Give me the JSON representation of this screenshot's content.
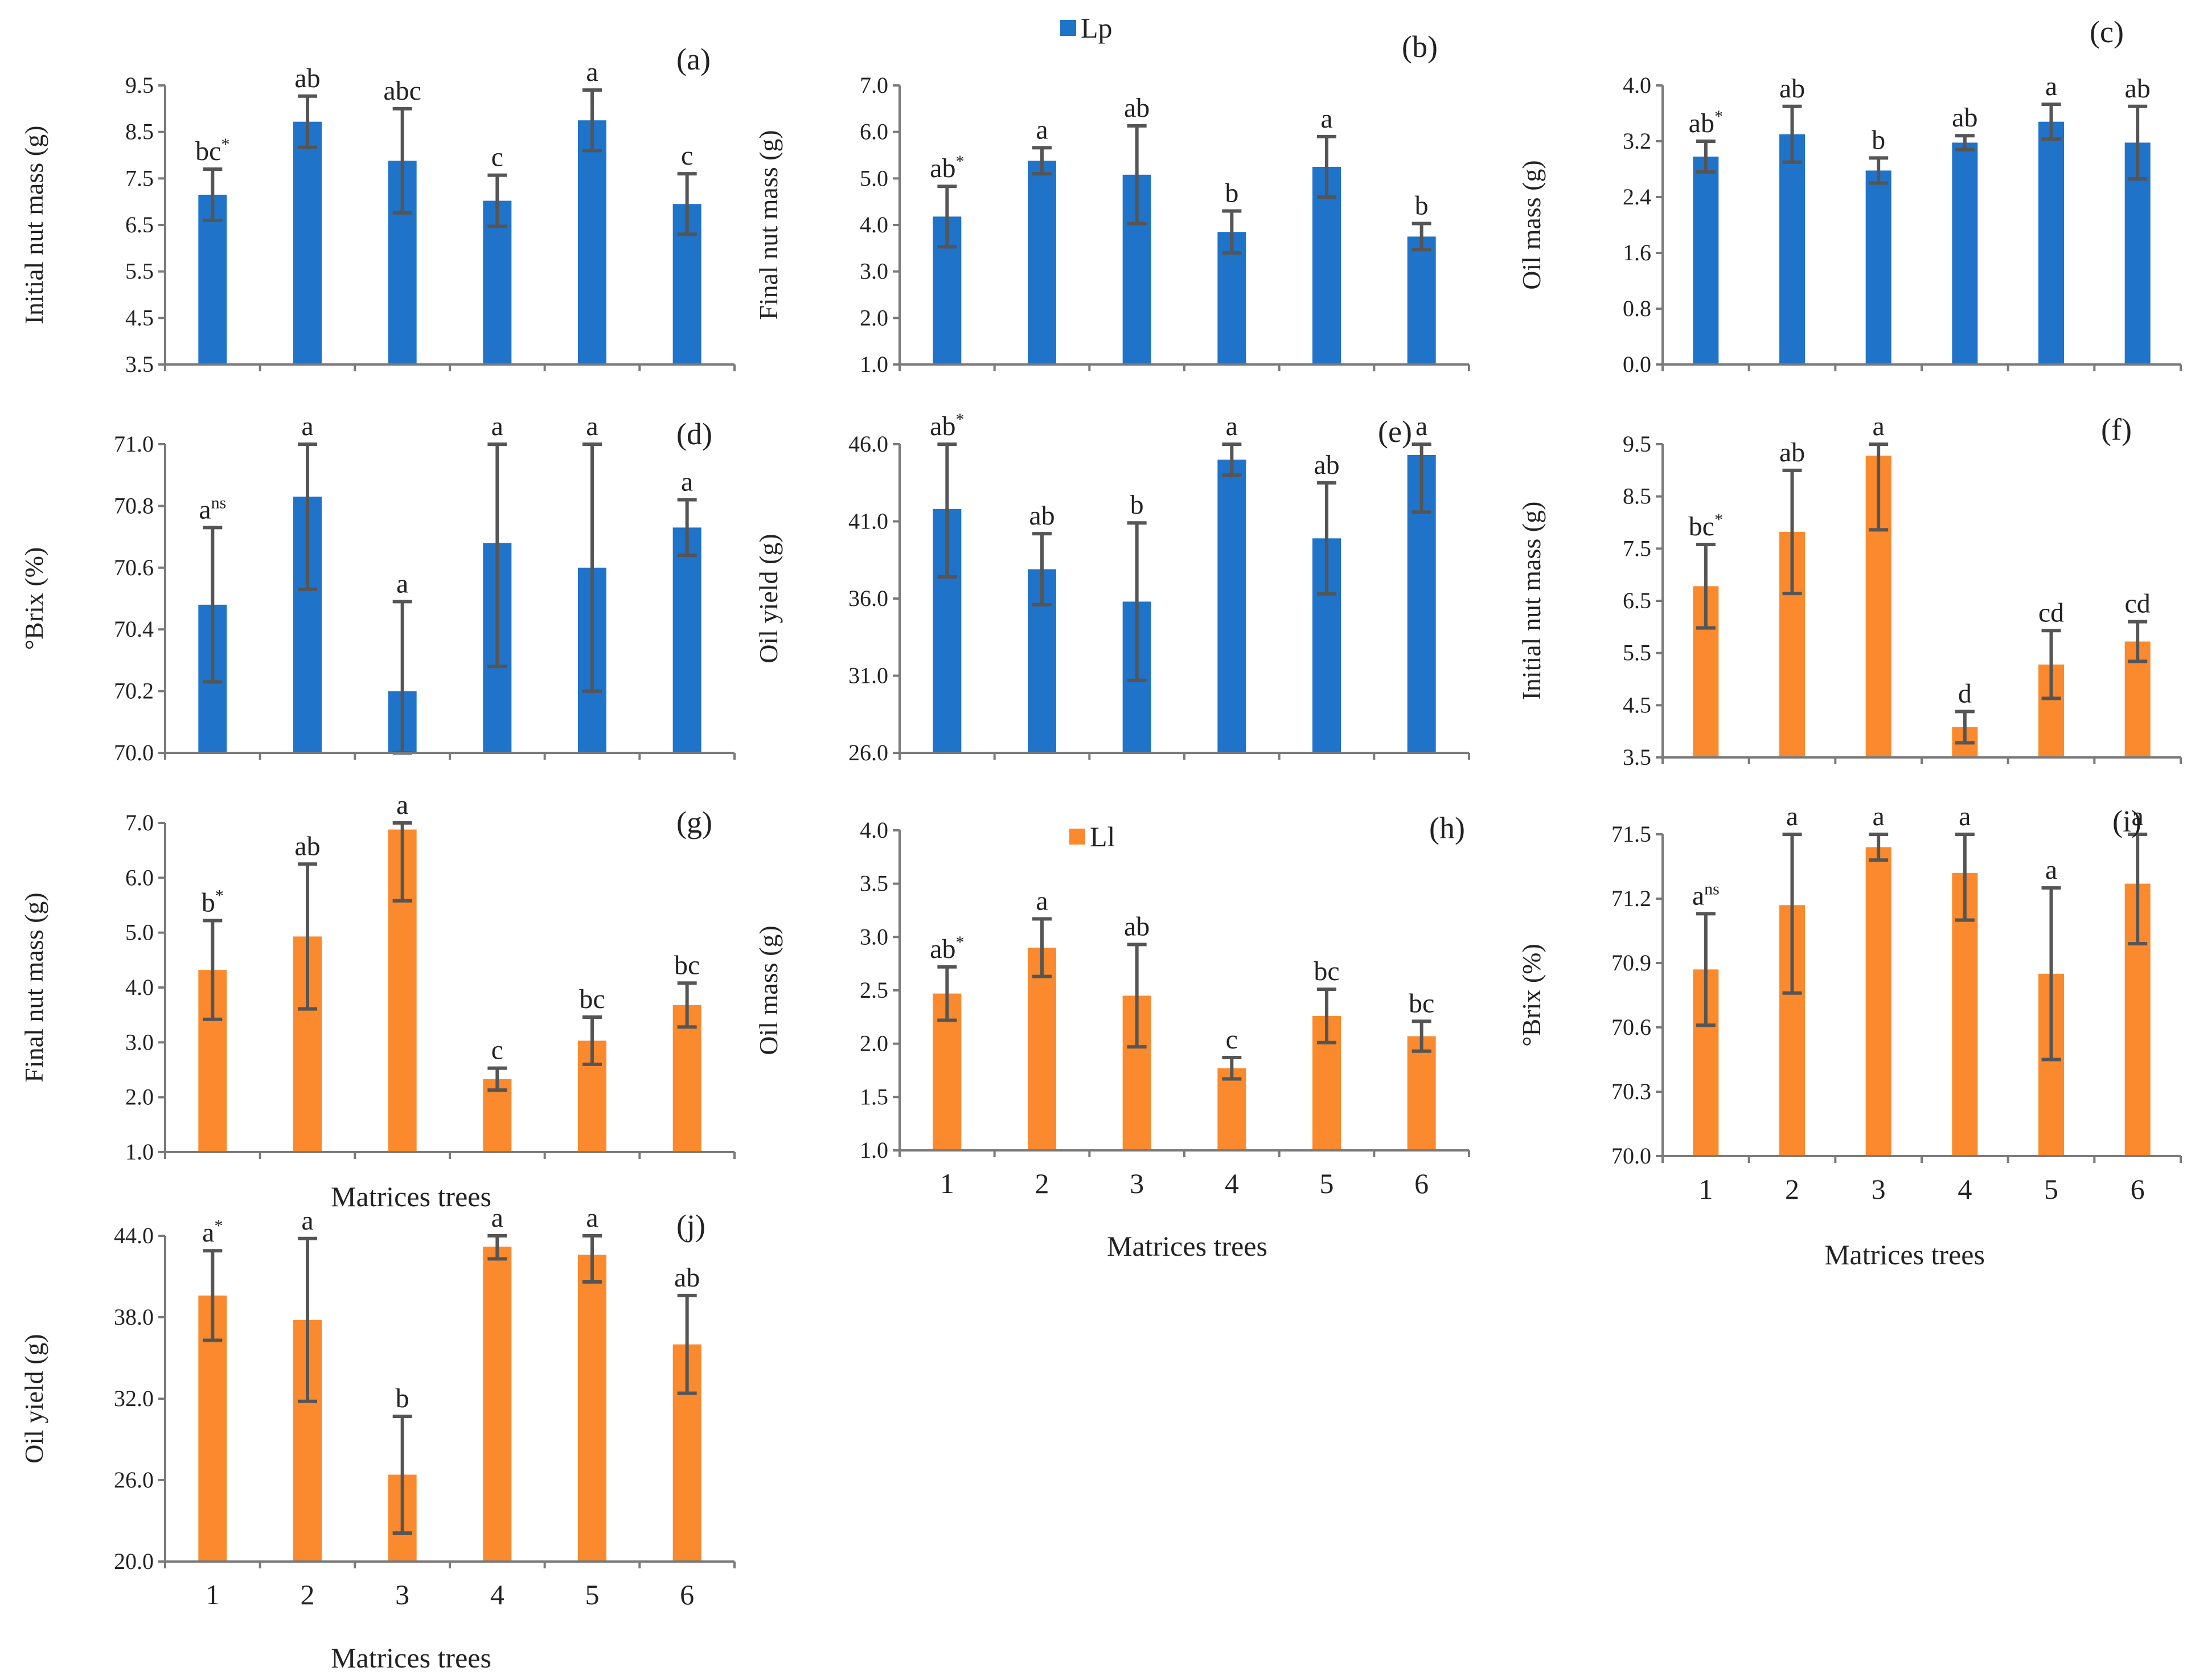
{
  "figure": {
    "legend": [
      {
        "label": "Lp",
        "color": "#1F73C9"
      },
      {
        "label": "Ll",
        "color": "#FA8A2D"
      }
    ],
    "colors": {
      "axis": "#7a7a7a",
      "error": "#555555"
    }
  },
  "chart_data": [
    {
      "panel": "(a)",
      "type": "bar",
      "series": "Lp",
      "ylabel": "Initial nut mass (g)",
      "xlabel": "",
      "categories": [
        "1",
        "2",
        "3",
        "4",
        "5",
        "6"
      ],
      "values": [
        7.15,
        8.72,
        7.88,
        7.02,
        8.75,
        6.95
      ],
      "errors": [
        0.55,
        0.55,
        1.12,
        0.55,
        0.65,
        0.65
      ],
      "letters": [
        "bc",
        "ab",
        "abc",
        "c",
        "a",
        "c"
      ],
      "marks": [
        "*",
        "",
        "",
        "",
        "",
        ""
      ],
      "ylim": [
        3.5,
        9.5
      ],
      "yticks": [
        "3.5",
        "4.5",
        "5.5",
        "6.5",
        "7.5",
        "8.5",
        "9.5"
      ],
      "showXTicks": false
    },
    {
      "panel": "(b)",
      "type": "bar",
      "series": "Lp",
      "ylabel": "Final nut mass (g)",
      "xlabel": "",
      "categories": [
        "1",
        "2",
        "3",
        "4",
        "5",
        "6"
      ],
      "values": [
        4.18,
        5.38,
        5.08,
        3.85,
        5.25,
        3.75
      ],
      "errors": [
        0.65,
        0.28,
        1.05,
        0.45,
        0.65,
        0.28
      ],
      "letters": [
        "ab",
        "a",
        "ab",
        "b",
        "a",
        "b"
      ],
      "marks": [
        "*",
        "",
        "",
        "",
        "",
        ""
      ],
      "ylim": [
        1.0,
        7.0
      ],
      "yticks": [
        "1.0",
        "2.0",
        "3.0",
        "4.0",
        "5.0",
        "6.0",
        "7.0"
      ],
      "showXTicks": false
    },
    {
      "panel": "(c)",
      "type": "bar",
      "series": "Lp",
      "ylabel": "Oil mass (g)",
      "xlabel": "",
      "categories": [
        "1",
        "2",
        "3",
        "4",
        "5",
        "6"
      ],
      "values": [
        2.98,
        3.3,
        2.78,
        3.18,
        3.48,
        3.18
      ],
      "errors": [
        0.22,
        0.4,
        0.18,
        0.1,
        0.25,
        0.52
      ],
      "letters": [
        "ab",
        "ab",
        "b",
        "ab",
        "a",
        "ab"
      ],
      "marks": [
        "*",
        "",
        "",
        "",
        "",
        ""
      ],
      "ylim": [
        0.0,
        4.0
      ],
      "yticks": [
        "0.0",
        "0.8",
        "1.6",
        "2.4",
        "3.2",
        "4.0"
      ],
      "showXTicks": false
    },
    {
      "panel": "(d)",
      "type": "bar",
      "series": "Lp",
      "ylabel": "°Brix (%)",
      "xlabel": "",
      "categories": [
        "1",
        "2",
        "3",
        "4",
        "5",
        "6"
      ],
      "values": [
        70.48,
        70.83,
        70.2,
        70.68,
        70.6,
        70.73
      ],
      "errors": [
        0.25,
        0.3,
        0.29,
        0.4,
        0.4,
        0.09
      ],
      "letters": [
        "a",
        "a",
        "a",
        "a",
        "a",
        "a"
      ],
      "marks": [
        "ns",
        "",
        "",
        "",
        "",
        ""
      ],
      "ylim": [
        70.0,
        71.0
      ],
      "yticks": [
        "70.0",
        "70.2",
        "70.4",
        "70.6",
        "70.8",
        "71.0"
      ],
      "showXTicks": false
    },
    {
      "panel": "(e)",
      "type": "bar",
      "series": "Lp",
      "ylabel": "Oil yield (g)",
      "xlabel": "",
      "categories": [
        "1",
        "2",
        "3",
        "4",
        "5",
        "6"
      ],
      "values": [
        41.8,
        37.9,
        35.8,
        45.0,
        39.9,
        45.3
      ],
      "errors": [
        4.4,
        2.3,
        5.1,
        1.0,
        3.6,
        3.7
      ],
      "letters": [
        "ab",
        "ab",
        "b",
        "a",
        "ab",
        "a"
      ],
      "marks": [
        "*",
        "",
        "",
        "",
        "",
        ""
      ],
      "ylim": [
        26.0,
        46.0
      ],
      "yticks": [
        "26.0",
        "31.0",
        "36.0",
        "41.0",
        "46.0"
      ],
      "showXTicks": false
    },
    {
      "panel": "(f)",
      "type": "bar",
      "series": "Ll",
      "ylabel": "Initial nut mass (g)",
      "xlabel": "",
      "categories": [
        "1",
        "2",
        "3",
        "4",
        "5",
        "6"
      ],
      "values": [
        6.78,
        7.82,
        9.28,
        4.08,
        5.28,
        5.72
      ],
      "errors": [
        0.8,
        1.18,
        1.42,
        0.3,
        0.65,
        0.38
      ],
      "letters": [
        "bc",
        "ab",
        "a",
        "d",
        "cd",
        "cd"
      ],
      "marks": [
        "*",
        "",
        "",
        "",
        "",
        ""
      ],
      "ylim": [
        3.5,
        9.5
      ],
      "yticks": [
        "3.5",
        "4.5",
        "5.5",
        "6.5",
        "7.5",
        "8.5",
        "9.5"
      ],
      "showXTicks": false
    },
    {
      "panel": "(g)",
      "type": "bar",
      "series": "Ll",
      "ylabel": "Final nut mass (g)",
      "xlabel": "Matrices trees",
      "categories": [
        "1",
        "2",
        "3",
        "4",
        "5",
        "6"
      ],
      "values": [
        4.32,
        4.93,
        6.88,
        2.33,
        3.03,
        3.68
      ],
      "errors": [
        0.9,
        1.32,
        1.3,
        0.2,
        0.43,
        0.4
      ],
      "letters": [
        "b",
        "ab",
        "a",
        "c",
        "bc",
        "bc"
      ],
      "marks": [
        "*",
        "",
        "",
        "",
        "",
        ""
      ],
      "ylim": [
        1.0,
        7.0
      ],
      "yticks": [
        "1.0",
        "2.0",
        "3.0",
        "4.0",
        "5.0",
        "6.0",
        "7.0"
      ],
      "showXTicks": false
    },
    {
      "panel": "(h)",
      "type": "bar",
      "series": "Ll",
      "ylabel": "Oil mass (g)",
      "xlabel": "Matrices trees",
      "categories": [
        "1",
        "2",
        "3",
        "4",
        "5",
        "6"
      ],
      "values": [
        2.47,
        2.9,
        2.45,
        1.77,
        2.26,
        2.07
      ],
      "errors": [
        0.25,
        0.27,
        0.48,
        0.1,
        0.25,
        0.14
      ],
      "letters": [
        "ab",
        "a",
        "ab",
        "c",
        "bc",
        "bc"
      ],
      "marks": [
        "*",
        "",
        "",
        "",
        "",
        ""
      ],
      "ylim": [
        1.0,
        4.0
      ],
      "yticks": [
        "1.0",
        "1.5",
        "2.0",
        "2.5",
        "3.0",
        "3.5",
        "4.0"
      ],
      "showXTicks": true
    },
    {
      "panel": "(i)",
      "type": "bar",
      "series": "Ll",
      "ylabel": "°Brix (%)",
      "xlabel": "Matrices trees",
      "categories": [
        "1",
        "2",
        "3",
        "4",
        "5",
        "6"
      ],
      "values": [
        70.87,
        71.17,
        71.44,
        71.32,
        70.85,
        71.27
      ],
      "errors": [
        0.26,
        0.41,
        0.06,
        0.22,
        0.4,
        0.28
      ],
      "letters": [
        "a",
        "a",
        "a",
        "a",
        "a",
        "a"
      ],
      "marks": [
        "ns",
        "",
        "",
        "",
        "",
        ""
      ],
      "ylim": [
        70.0,
        71.5
      ],
      "yticks": [
        "70.0",
        "70.3",
        "70.6",
        "70.9",
        "71.2",
        "71.5"
      ],
      "showXTicks": true
    },
    {
      "panel": "(j)",
      "type": "bar",
      "series": "Ll",
      "ylabel": "Oil yield (g)",
      "xlabel": "Matrices trees",
      "categories": [
        "1",
        "2",
        "3",
        "4",
        "5",
        "6"
      ],
      "values": [
        39.6,
        37.8,
        26.4,
        43.2,
        42.6,
        36.0
      ],
      "errors": [
        3.3,
        6.0,
        4.3,
        0.9,
        2.0,
        3.6
      ],
      "letters": [
        "a",
        "a",
        "b",
        "a",
        "a",
        "ab"
      ],
      "marks": [
        "*",
        "",
        "",
        "",
        "",
        ""
      ],
      "ylim": [
        20.0,
        44.0
      ],
      "yticks": [
        "20.0",
        "26.0",
        "32.0",
        "38.0",
        "44.0"
      ],
      "showXTicks": true
    }
  ]
}
